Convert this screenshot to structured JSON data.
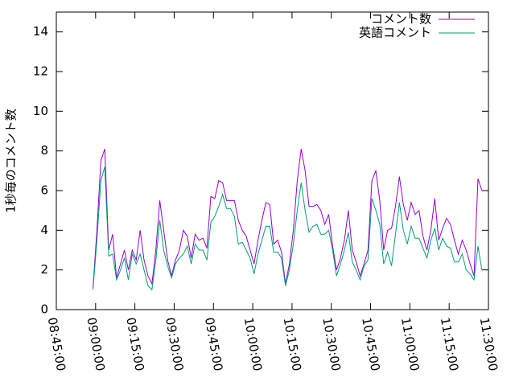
{
  "chart_data": {
    "type": "line",
    "ylabel": "1秒毎のコメント数",
    "x": [
      "08:59:00",
      "09:00:30",
      "09:02:00",
      "09:03:30",
      "09:05:00",
      "09:06:30",
      "09:08:00",
      "09:09:30",
      "09:11:00",
      "09:12:30",
      "09:14:00",
      "09:15:30",
      "09:17:00",
      "09:18:30",
      "09:20:00",
      "09:21:30",
      "09:23:00",
      "09:24:30",
      "09:26:00",
      "09:27:30",
      "09:29:00",
      "09:30:30",
      "09:32:00",
      "09:33:30",
      "09:35:00",
      "09:36:30",
      "09:38:00",
      "09:39:30",
      "09:41:00",
      "09:42:30",
      "09:44:00",
      "09:45:30",
      "09:47:00",
      "09:48:30",
      "09:50:00",
      "09:51:30",
      "09:53:00",
      "09:54:30",
      "09:56:00",
      "09:57:30",
      "09:59:00",
      "10:00:30",
      "10:02:00",
      "10:03:30",
      "10:05:00",
      "10:06:30",
      "10:08:00",
      "10:09:30",
      "10:11:00",
      "10:12:30",
      "10:14:00",
      "10:15:30",
      "10:17:00",
      "10:18:30",
      "10:20:00",
      "10:21:30",
      "10:23:00",
      "10:24:30",
      "10:26:00",
      "10:27:30",
      "10:29:00",
      "10:30:30",
      "10:32:00",
      "10:33:30",
      "10:35:00",
      "10:36:30",
      "10:38:00",
      "10:39:30",
      "10:41:00",
      "10:42:30",
      "10:44:00",
      "10:45:30",
      "10:47:00",
      "10:48:30",
      "10:50:00",
      "10:51:30",
      "10:53:00",
      "10:54:30",
      "10:56:00",
      "10:57:30",
      "10:59:00",
      "11:00:30",
      "11:02:00",
      "11:03:30",
      "11:05:00",
      "11:06:30",
      "11:08:00",
      "11:09:30",
      "11:11:00",
      "11:12:30",
      "11:14:00",
      "11:15:30",
      "11:17:00",
      "11:18:30",
      "11:20:00",
      "11:21:30",
      "11:23:00",
      "11:24:30",
      "11:26:00",
      "11:27:30"
    ],
    "series": [
      {
        "name": "コメント数",
        "color": "#9400d3",
        "values": [
          1.1,
          4,
          7.5,
          8.1,
          3,
          3.8,
          1.6,
          2.3,
          3,
          2,
          3,
          2.5,
          4,
          2.5,
          1.7,
          1.3,
          3,
          5.5,
          4,
          2.5,
          1.7,
          2.5,
          3,
          4,
          3.7,
          2.6,
          3.8,
          3.5,
          3.6,
          3.1,
          5.7,
          5.6,
          6.5,
          6.4,
          5.5,
          5.5,
          5.5,
          4.5,
          4,
          3.7,
          3,
          2.3,
          3.5,
          4.5,
          5.4,
          5.3,
          3.3,
          3.5,
          2.9,
          1.3,
          2.3,
          4,
          6.5,
          8.1,
          7,
          5.2,
          5.2,
          5.3,
          5,
          4.3,
          4.8,
          3.2,
          2,
          2.6,
          3.5,
          5,
          3,
          2.4,
          1.7,
          2.3,
          3,
          6.5,
          7,
          5.5,
          3,
          4,
          4.1,
          5.2,
          6.7,
          5.3,
          4.5,
          5.4,
          4.8,
          5,
          3.7,
          3,
          4,
          5.6,
          3.5,
          4.1,
          4.6,
          4.3,
          3.5,
          2.8,
          3.5,
          3,
          2.3,
          1.7,
          6.6,
          6
        ]
      },
      {
        "name": "英語コメント",
        "color": "#009e73",
        "values": [
          1.0,
          3.5,
          6.5,
          7.2,
          2.7,
          2.8,
          1.5,
          2,
          2.6,
          1.5,
          2.8,
          2.3,
          2.8,
          2,
          1.2,
          1,
          2.5,
          4.5,
          3,
          2.2,
          1.6,
          2.3,
          2.6,
          2.8,
          3.2,
          2.3,
          3.3,
          3,
          3,
          2.5,
          4.4,
          4.7,
          5.2,
          5.8,
          5.1,
          5.1,
          4.7,
          3.3,
          3.4,
          3,
          2.6,
          1.8,
          2.8,
          3.5,
          4.2,
          4.2,
          2.9,
          2.9,
          2.6,
          1.2,
          2,
          3.3,
          5,
          6.4,
          5,
          3.9,
          4.2,
          4.3,
          3.8,
          3.8,
          4,
          3,
          1.7,
          2.3,
          3,
          3.9,
          2.4,
          2,
          1.5,
          2.2,
          2.5,
          5.6,
          5,
          4.3,
          2.3,
          2.9,
          2.2,
          3.8,
          5.4,
          4,
          3.3,
          4.2,
          3.6,
          3.6,
          3.1,
          2.6,
          3.5,
          4.1,
          3,
          3.6,
          3.2,
          3.1,
          2.4,
          2.4,
          2.8,
          2,
          1.8,
          1.5,
          3.2,
          2
        ]
      }
    ],
    "xlim": [
      "08:45:00",
      "11:30:00"
    ],
    "xticks": [
      "08:45:00",
      "09:00:00",
      "09:15:00",
      "09:30:00",
      "09:45:00",
      "10:00:00",
      "10:15:00",
      "10:30:00",
      "10:45:00",
      "11:00:00",
      "11:15:00",
      "11:30:00"
    ],
    "ylim": [
      0,
      15
    ],
    "yticks": [
      0,
      2,
      4,
      6,
      8,
      10,
      12,
      14
    ],
    "legend": "top-right"
  }
}
